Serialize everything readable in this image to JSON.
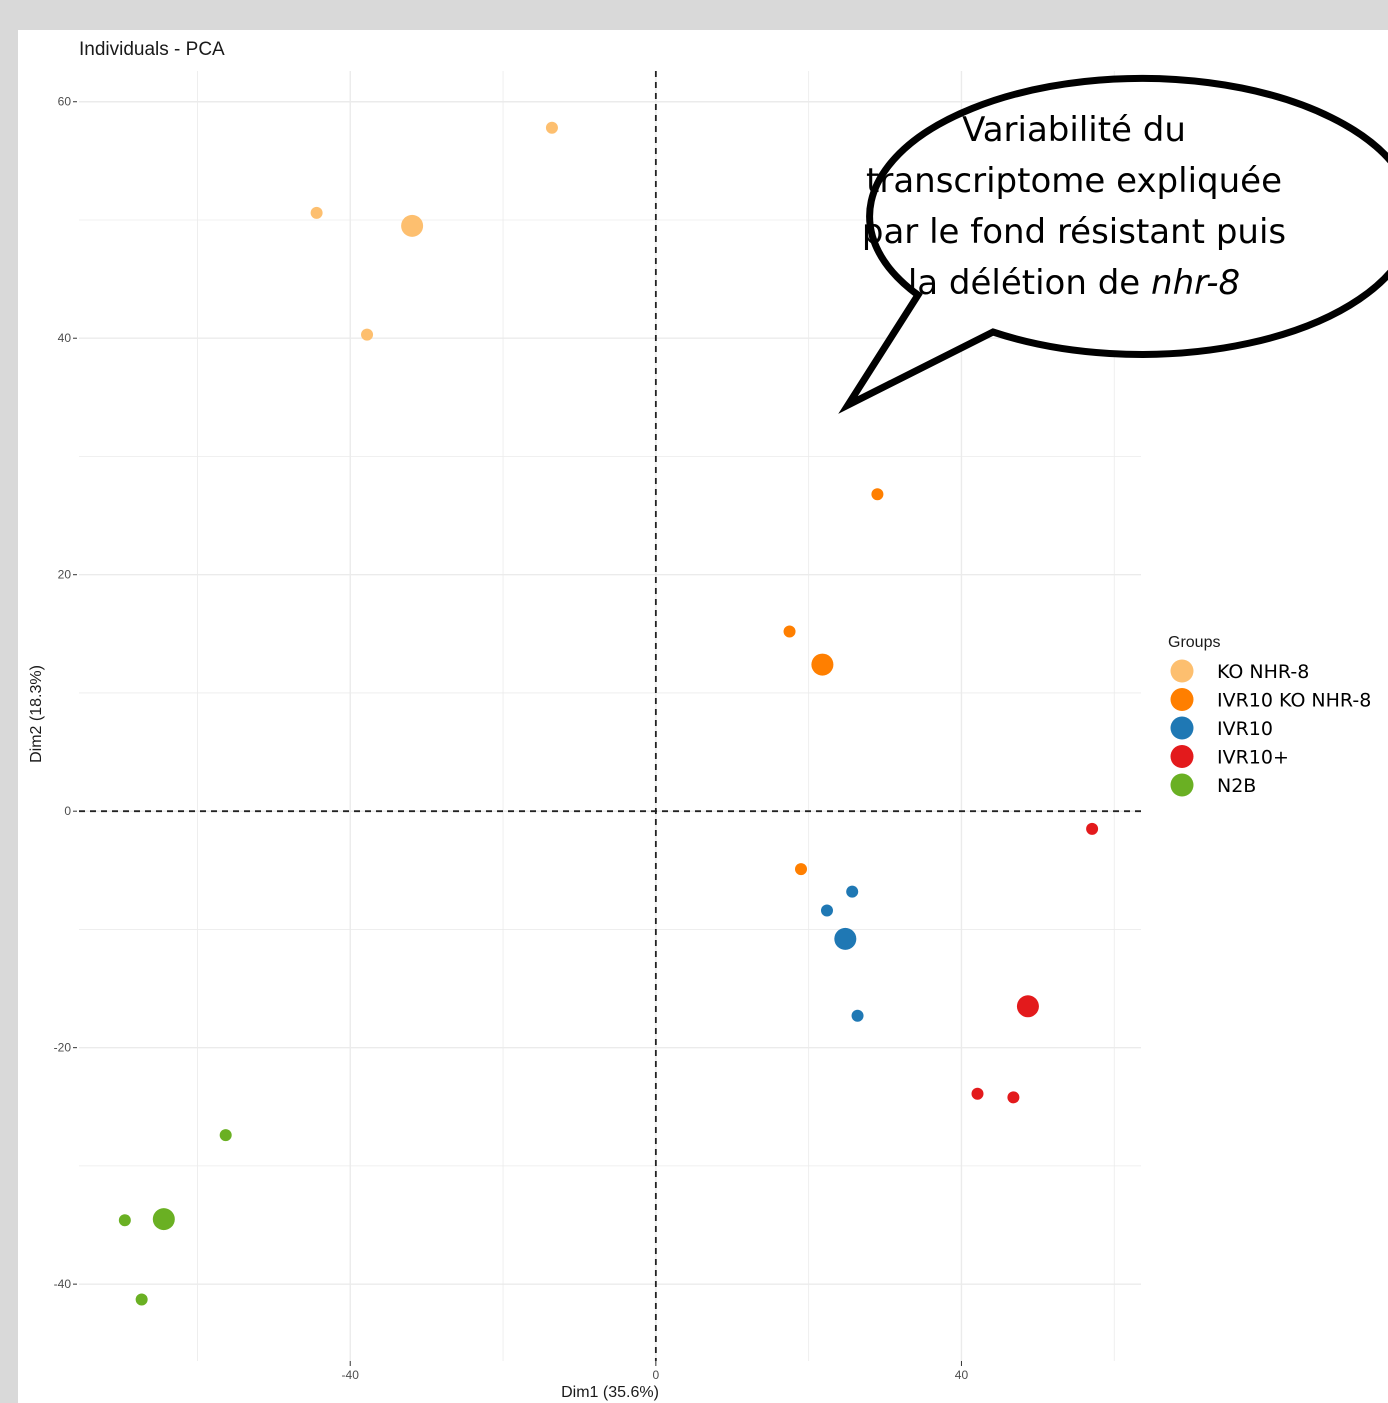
{
  "chart_data": {
    "type": "scatter",
    "title": "Individuals - PCA",
    "xlabel": "Dim1 (35.6%)",
    "ylabel": "Dim2 (18.3%)",
    "xlim": [
      -75.5,
      63.5
    ],
    "ylim": [
      -46.5,
      62.6
    ],
    "x_ticks": [
      -40,
      0,
      40
    ],
    "y_ticks": [
      60,
      40,
      20,
      0,
      -20,
      -40
    ],
    "grid": true,
    "reference_lines": [
      0,
      0
    ],
    "legend": {
      "title": "Groups",
      "position": "right",
      "entries": [
        "KO NHR-8",
        "IVR10 KO NHR-8",
        "IVR10",
        "IVR10+",
        "N2B"
      ]
    },
    "series": [
      {
        "name": "KO NHR-8",
        "color": "#fdbf6f",
        "points": [
          [
            -13.6,
            57.8
          ],
          [
            -44.4,
            50.6
          ],
          [
            -37.8,
            40.3
          ]
        ],
        "centroid": [
          -31.9,
          49.5
        ]
      },
      {
        "name": "IVR10 KO NHR-8",
        "color": "#ff7f00",
        "points": [
          [
            29.0,
            26.8
          ],
          [
            17.5,
            15.2
          ],
          [
            19.0,
            -4.9
          ]
        ],
        "centroid": [
          21.8,
          12.4
        ]
      },
      {
        "name": "IVR10",
        "color": "#1f78b4",
        "points": [
          [
            25.7,
            -6.8
          ],
          [
            22.4,
            -8.4
          ],
          [
            26.4,
            -17.3
          ]
        ],
        "centroid": [
          24.8,
          -10.8
        ]
      },
      {
        "name": "IVR10+",
        "color": "#e31a1c",
        "points": [
          [
            57.1,
            -1.5
          ],
          [
            42.1,
            -23.9
          ],
          [
            46.8,
            -24.2
          ]
        ],
        "centroid": [
          48.7,
          -16.5
        ]
      },
      {
        "name": "N2B",
        "color": "#6ab023",
        "points": [
          [
            -56.3,
            -27.4
          ],
          [
            -69.5,
            -34.6
          ],
          [
            -67.3,
            -41.3
          ]
        ],
        "centroid": [
          -64.4,
          -34.5
        ]
      }
    ],
    "annotation": {
      "lines": [
        "Variabilité du",
        "transcriptome expliquée",
        "par le fond résistant puis"
      ],
      "last_line_prefix": "la délétion de ",
      "last_line_italic": "nhr-8"
    }
  }
}
